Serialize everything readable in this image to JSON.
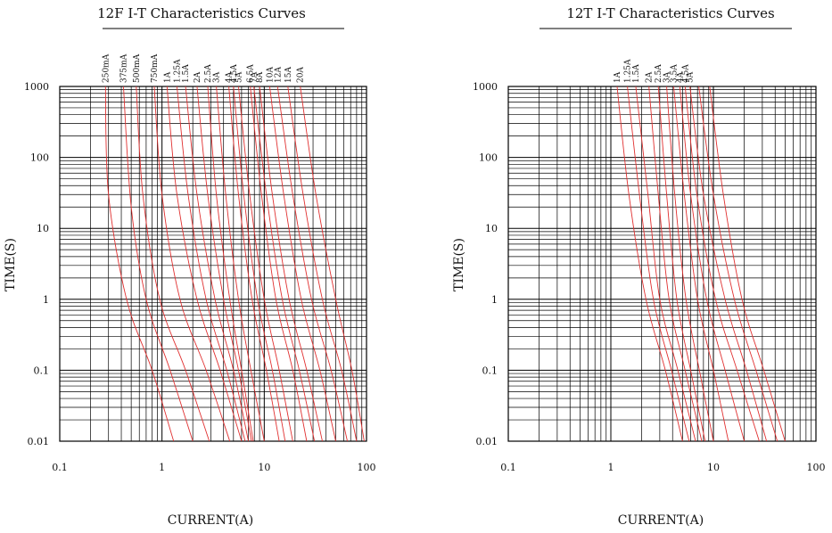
{
  "chart_data": [
    {
      "type": "line",
      "title": "12F I-T Characteristics Curves",
      "xlabel": "CURRENT(A)",
      "ylabel": "TIME(S)",
      "xscale": "log",
      "yscale": "log",
      "xlim": [
        0.1,
        100
      ],
      "ylim": [
        0.01,
        1000
      ],
      "x_ticks": [
        "0.1",
        "1",
        "10",
        "100"
      ],
      "y_ticks": [
        "0.01",
        "0.1",
        "1",
        "10",
        "100",
        "1000"
      ],
      "grid": true,
      "curve_color": "#e03030",
      "series": [
        {
          "name": "250mA",
          "points": [
            [
              0.28,
              1000
            ],
            [
              0.3,
              30
            ],
            [
              0.45,
              1
            ],
            [
              0.8,
              0.1
            ],
            [
              1.3,
              0.01
            ]
          ]
        },
        {
          "name": "375mA",
          "points": [
            [
              0.42,
              1000
            ],
            [
              0.5,
              20
            ],
            [
              0.7,
              1
            ],
            [
              1.2,
              0.1
            ],
            [
              2.0,
              0.01
            ]
          ]
        },
        {
          "name": "500mA",
          "points": [
            [
              0.56,
              1000
            ],
            [
              0.65,
              30
            ],
            [
              0.95,
              1
            ],
            [
              1.7,
              0.1
            ],
            [
              2.9,
              0.01
            ]
          ]
        },
        {
          "name": "750mA",
          "points": [
            [
              0.84,
              1000
            ],
            [
              1.0,
              30
            ],
            [
              1.5,
              1
            ],
            [
              2.7,
              0.1
            ],
            [
              4.6,
              0.01
            ]
          ]
        },
        {
          "name": "1A",
          "points": [
            [
              1.12,
              1000
            ],
            [
              1.4,
              30
            ],
            [
              2.2,
              1
            ],
            [
              3.7,
              0.1
            ],
            [
              6.0,
              0.01
            ]
          ]
        },
        {
          "name": "1.25A",
          "points": [
            [
              1.4,
              1000
            ],
            [
              1.8,
              30
            ],
            [
              2.7,
              1
            ],
            [
              4.3,
              0.1
            ],
            [
              6.5,
              0.01
            ]
          ]
        },
        {
          "name": "1.5A",
          "points": [
            [
              1.7,
              1000
            ],
            [
              2.2,
              30
            ],
            [
              3.3,
              1
            ],
            [
              5.0,
              0.1
            ],
            [
              7.0,
              0.01
            ]
          ]
        },
        {
          "name": "2A",
          "points": [
            [
              2.2,
              1000
            ],
            [
              2.8,
              30
            ],
            [
              4.0,
              1
            ],
            [
              5.6,
              0.1
            ],
            [
              7.5,
              0.01
            ]
          ]
        },
        {
          "name": "2.5A",
          "points": [
            [
              2.8,
              1000
            ],
            [
              3.4,
              30
            ],
            [
              4.6,
              1
            ],
            [
              6.0,
              0.1
            ],
            [
              7.8,
              0.01
            ]
          ]
        },
        {
          "name": "3A",
          "points": [
            [
              3.4,
              1000
            ],
            [
              4.2,
              30
            ],
            [
              5.6,
              1
            ],
            [
              7.4,
              0.1
            ],
            [
              10,
              0.01
            ]
          ]
        },
        {
          "name": "4A",
          "points": [
            [
              4.5,
              1000
            ],
            [
              5.6,
              30
            ],
            [
              7.6,
              1
            ],
            [
              10.5,
              0.1
            ],
            [
              14,
              0.01
            ]
          ]
        },
        {
          "name": "4.5A",
          "points": [
            [
              5.0,
              1000
            ],
            [
              6.3,
              30
            ],
            [
              8.6,
              1
            ],
            [
              12,
              0.1
            ],
            [
              16,
              0.01
            ]
          ]
        },
        {
          "name": "5A",
          "points": [
            [
              5.6,
              1000
            ],
            [
              7.2,
              30
            ],
            [
              10,
              1
            ],
            [
              14,
              0.1
            ],
            [
              19,
              0.01
            ]
          ]
        },
        {
          "name": "6.5A",
          "points": [
            [
              7.3,
              1000
            ],
            [
              9.4,
              30
            ],
            [
              13,
              1
            ],
            [
              19,
              0.1
            ],
            [
              26,
              0.01
            ]
          ]
        },
        {
          "name": "7A",
          "points": [
            [
              7.9,
              1000
            ],
            [
              10.5,
              30
            ],
            [
              15,
              1
            ],
            [
              22,
              0.1
            ],
            [
              31,
              0.01
            ]
          ]
        },
        {
          "name": "8A",
          "points": [
            [
              9.0,
              1000
            ],
            [
              12,
              30
            ],
            [
              17.5,
              1
            ],
            [
              26,
              0.1
            ],
            [
              37,
              0.01
            ]
          ]
        },
        {
          "name": "10A",
          "points": [
            [
              11.3,
              1000
            ],
            [
              15.5,
              30
            ],
            [
              23,
              1
            ],
            [
              35,
              0.1
            ],
            [
              50,
              0.01
            ]
          ]
        },
        {
          "name": "12A",
          "points": [
            [
              13.5,
              1000
            ],
            [
              19,
              30
            ],
            [
              29,
              1
            ],
            [
              45,
              0.1
            ],
            [
              65,
              0.01
            ]
          ]
        },
        {
          "name": "15A",
          "points": [
            [
              17,
              1000
            ],
            [
              24,
              30
            ],
            [
              37,
              1
            ],
            [
              57,
              0.1
            ],
            [
              80,
              0.01
            ]
          ]
        },
        {
          "name": "20A",
          "points": [
            [
              22.5,
              1000
            ],
            [
              32,
              30
            ],
            [
              50,
              1
            ],
            [
              72,
              0.1
            ],
            [
              95,
              0.01
            ]
          ]
        }
      ]
    },
    {
      "type": "line",
      "title": "12T I-T Characteristics Curves",
      "xlabel": "CURRENT(A)",
      "ylabel": "TIME(S)",
      "xscale": "log",
      "yscale": "log",
      "xlim": [
        0.1,
        100
      ],
      "ylim": [
        0.01,
        1000
      ],
      "x_ticks": [
        "0.1",
        "1",
        "10",
        "100"
      ],
      "y_ticks": [
        "0.01",
        "0.1",
        "1",
        "10",
        "100",
        "1000"
      ],
      "grid": true,
      "curve_color": "#e03030",
      "series": [
        {
          "name": "1A",
          "points": [
            [
              1.15,
              1000
            ],
            [
              1.5,
              30
            ],
            [
              2.2,
              1
            ],
            [
              3.4,
              0.1
            ],
            [
              5.0,
              0.01
            ]
          ]
        },
        {
          "name": "1.25A",
          "points": [
            [
              1.45,
              1000
            ],
            [
              1.9,
              30
            ],
            [
              2.6,
              1
            ],
            [
              3.9,
              0.1
            ],
            [
              5.8,
              0.01
            ]
          ]
        },
        {
          "name": "1.5A",
          "points": [
            [
              1.75,
              1000
            ],
            [
              2.3,
              30
            ],
            [
              3.0,
              1
            ],
            [
              4.5,
              0.1
            ],
            [
              6.7,
              0.01
            ]
          ]
        },
        {
          "name": "2A",
          "points": [
            [
              2.35,
              1000
            ],
            [
              2.9,
              30
            ],
            [
              3.7,
              1
            ],
            [
              5.3,
              0.1
            ],
            [
              7.7,
              0.01
            ]
          ]
        },
        {
          "name": "2.5A",
          "points": [
            [
              2.9,
              1000
            ],
            [
              3.5,
              30
            ],
            [
              4.4,
              1
            ],
            [
              6.0,
              0.1
            ],
            [
              8.3,
              0.01
            ]
          ]
        },
        {
          "name": "3A",
          "points": [
            [
              3.5,
              1000
            ],
            [
              4.2,
              30
            ],
            [
              5.4,
              1
            ],
            [
              7.3,
              0.1
            ],
            [
              10,
              0.01
            ]
          ]
        },
        {
          "name": "3.5A",
          "points": [
            [
              4.1,
              1000
            ],
            [
              5.2,
              30
            ],
            [
              7.0,
              1
            ],
            [
              10,
              0.1
            ],
            [
              14,
              0.01
            ]
          ]
        },
        {
          "name": "4A",
          "points": [
            [
              4.7,
              1000
            ],
            [
              6.0,
              30
            ],
            [
              8.6,
              1
            ],
            [
              13,
              0.1
            ],
            [
              20,
              0.01
            ]
          ]
        },
        {
          "name": "4.5A",
          "points": [
            [
              5.3,
              1000
            ],
            [
              6.9,
              30
            ],
            [
              10.5,
              1
            ],
            [
              17,
              0.1
            ],
            [
              28,
              0.01
            ]
          ]
        },
        {
          "name": "5A",
          "points": [
            [
              5.9,
              1000
            ],
            [
              8.0,
              30
            ],
            [
              13,
              1
            ],
            [
              21,
              0.1
            ],
            [
              33,
              0.01
            ]
          ]
        },
        {
          "name": "",
          "points": [
            [
              7.2,
              1000
            ],
            [
              10,
              30
            ],
            [
              16,
              1
            ],
            [
              26,
              0.1
            ],
            [
              42,
              0.01
            ]
          ]
        },
        {
          "name": "",
          "points": [
            [
              9.2,
              1000
            ],
            [
              12.5,
              30
            ],
            [
              19,
              1
            ],
            [
              31,
              0.1
            ],
            [
              50,
              0.01
            ]
          ]
        }
      ]
    }
  ]
}
